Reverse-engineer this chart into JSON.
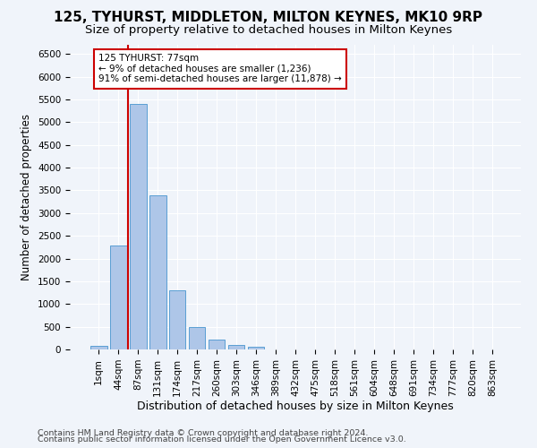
{
  "title1": "125, TYHURST, MIDDLETON, MILTON KEYNES, MK10 9RP",
  "title2": "Size of property relative to detached houses in Milton Keynes",
  "xlabel": "Distribution of detached houses by size in Milton Keynes",
  "ylabel": "Number of detached properties",
  "footnote1": "Contains HM Land Registry data © Crown copyright and database right 2024.",
  "footnote2": "Contains public sector information licensed under the Open Government Licence v3.0.",
  "bar_labels": [
    "1sqm",
    "44sqm",
    "87sqm",
    "131sqm",
    "174sqm",
    "217sqm",
    "260sqm",
    "303sqm",
    "346sqm",
    "389sqm",
    "432sqm",
    "475sqm",
    "518sqm",
    "561sqm",
    "604sqm",
    "648sqm",
    "691sqm",
    "734sqm",
    "777sqm",
    "820sqm",
    "863sqm"
  ],
  "bar_values": [
    75,
    2280,
    5400,
    3380,
    1310,
    490,
    210,
    90,
    55,
    0,
    0,
    0,
    0,
    0,
    0,
    0,
    0,
    0,
    0,
    0,
    0
  ],
  "bar_color": "#aec6e8",
  "bar_edge_color": "#5a9fd4",
  "vline_x": 1.5,
  "vline_color": "#cc0000",
  "annotation_text": "125 TYHURST: 77sqm\n← 9% of detached houses are smaller (1,236)\n91% of semi-detached houses are larger (11,878) →",
  "annotation_box_color": "white",
  "annotation_box_edge": "#cc0000",
  "ylim": [
    0,
    6700
  ],
  "yticks": [
    0,
    500,
    1000,
    1500,
    2000,
    2500,
    3000,
    3500,
    4000,
    4500,
    5000,
    5500,
    6000,
    6500
  ],
  "bg_color": "#f0f4fa",
  "grid_color": "white",
  "title1_fontsize": 11,
  "title2_fontsize": 9.5,
  "xlabel_fontsize": 9,
  "ylabel_fontsize": 8.5,
  "tick_fontsize": 7.5,
  "annot_fontsize": 7.5,
  "footnote_fontsize": 6.8
}
